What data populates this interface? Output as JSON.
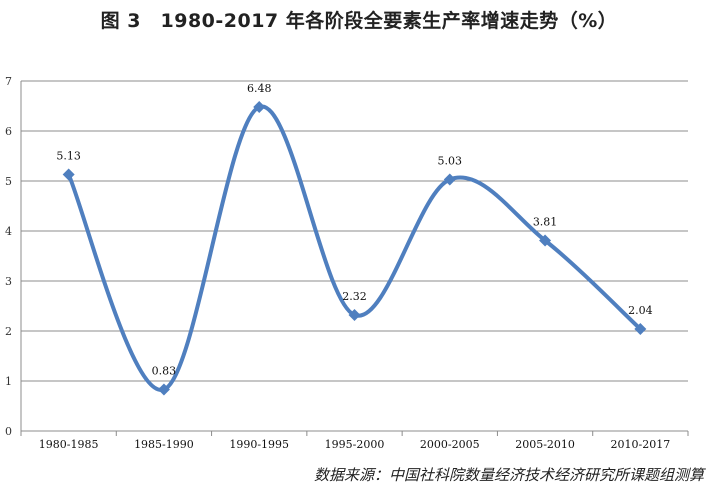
{
  "page": {
    "title": "图 3　1980-2017 年各阶段全要素生产率增速走势（%）",
    "source": "数据来源：中国社科院数量经济技术经济研究所课题组测算"
  },
  "chart_data": {
    "type": "line",
    "title": "图 3　1980-2017 年各阶段全要素生产率增速走势（%）",
    "categories": [
      "1980-1985",
      "1985-1990",
      "1990-1995",
      "1995-2000",
      "2000-2005",
      "2005-2010",
      "2010-2017"
    ],
    "series": [
      {
        "values": [
          5.13,
          0.83,
          6.48,
          2.32,
          5.03,
          3.81,
          2.04
        ],
        "data_labels": [
          "5.13",
          "0.83",
          "6.48",
          "2.32",
          "5.03",
          "3.81",
          "2.04"
        ]
      }
    ],
    "ylim": [
      0,
      7
    ],
    "yticks": [
      0,
      1,
      2,
      3,
      4,
      5,
      6,
      7
    ],
    "xlabel": "",
    "ylabel": "",
    "grid": true,
    "smooth": true,
    "marker": "diamond",
    "line_color": "#4f7fbf"
  }
}
